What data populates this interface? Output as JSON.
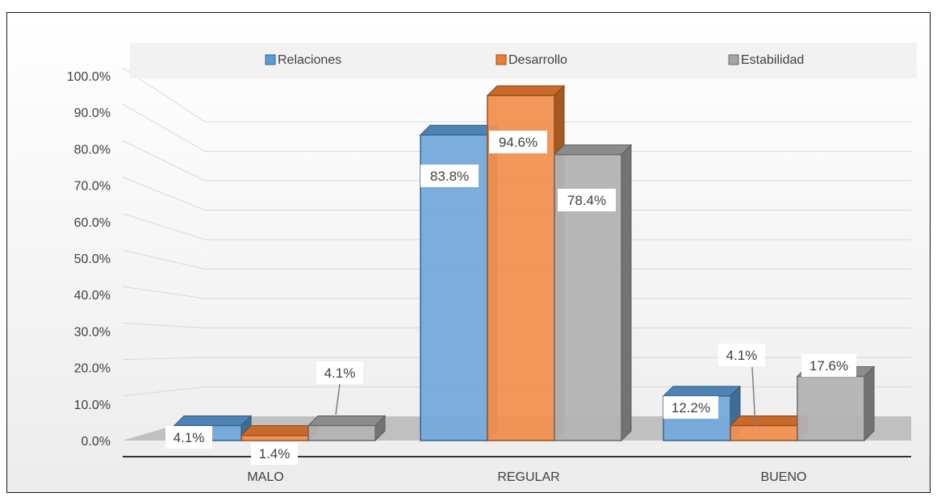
{
  "chart_data": {
    "type": "bar",
    "title": "",
    "xlabel": "",
    "ylabel": "",
    "categories": [
      "MALO",
      "REGULAR",
      "BUENO"
    ],
    "series": [
      {
        "name": "Relaciones",
        "values": [
          4.1,
          83.8,
          12.2
        ],
        "labels": [
          "4.1%",
          "83.8%",
          "12.2%"
        ],
        "color": "#5b9bd5"
      },
      {
        "name": "Desarrollo",
        "values": [
          1.4,
          94.6,
          4.1
        ],
        "labels": [
          "1.4%",
          "94.6%",
          "4.1%"
        ],
        "color": "#ed7d31"
      },
      {
        "name": "Estabilidad",
        "values": [
          4.1,
          78.4,
          17.6
        ],
        "labels": [
          "4.1%",
          "78.4%",
          "17.6%"
        ],
        "color": "#a5a5a5"
      }
    ],
    "ylim": [
      0,
      100
    ],
    "yticks": [
      "0.0%",
      "10.0%",
      "20.0%",
      "30.0%",
      "40.0%",
      "50.0%",
      "60.0%",
      "70.0%",
      "80.0%",
      "90.0%",
      "100.0%"
    ],
    "grid": true,
    "legend_position": "top",
    "style": "3d-clustered-column"
  }
}
